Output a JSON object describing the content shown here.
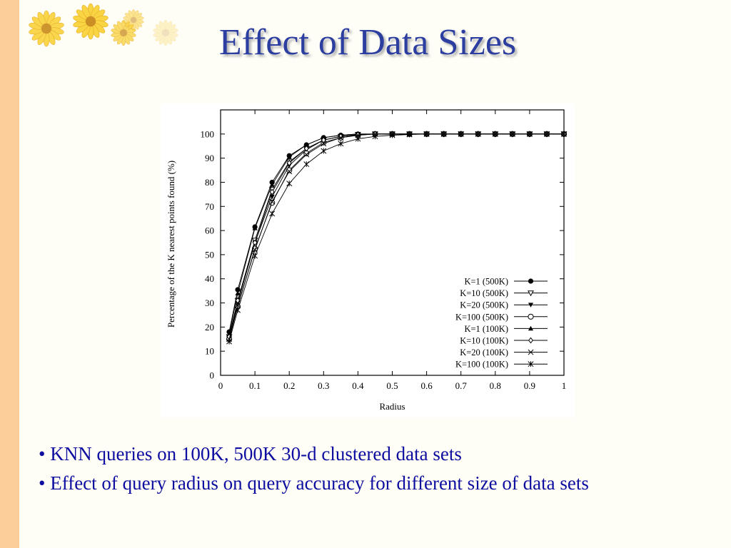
{
  "slide": {
    "title": "Effect of Data Sizes",
    "bullets": [
      "• KNN queries on 100K, 500K 30-d clustered data sets",
      "• Effect of query radius on query accuracy for different size of data sets"
    ],
    "colors": {
      "title": "#2c3ea0",
      "bullets": "#0d0da0",
      "left_bar": "#fccf9a"
    },
    "decoration": "sunflower-flowers-icon"
  },
  "chart_data": {
    "type": "line",
    "title": "",
    "xlabel": "Radius",
    "ylabel": "Percentage of the K nearest points found (%)",
    "xlim": [
      0,
      1
    ],
    "ylim": [
      0,
      110
    ],
    "xticks": [
      0,
      0.1,
      0.2,
      0.3,
      0.4,
      0.5,
      0.6,
      0.7,
      0.8,
      0.9,
      1
    ],
    "xtick_labels": [
      "0",
      "0.1",
      "0.2",
      "0.3",
      "0.4",
      "0.5",
      "0.6",
      "0.7",
      "0.8",
      "0.9",
      "1"
    ],
    "yticks": [
      0,
      10,
      20,
      30,
      40,
      50,
      60,
      70,
      80,
      90,
      100
    ],
    "ytick_labels": [
      "0",
      "10",
      "20",
      "30",
      "40",
      "50",
      "60",
      "70",
      "80",
      "90",
      "100"
    ],
    "grid": false,
    "legend_position": "lower-right",
    "x": [
      0.025,
      0.05,
      0.1,
      0.15,
      0.2,
      0.25,
      0.3,
      0.35,
      0.4,
      0.45,
      0.5,
      0.55,
      0.6,
      0.65,
      0.7,
      0.75,
      0.8,
      0.85,
      0.9,
      0.95,
      1.0
    ],
    "series": [
      {
        "name": "K=1 (500K)",
        "marker": "filled-circle",
        "values": [
          18,
          35.5,
          61.5,
          80,
          91,
          95.5,
          98.5,
          99.5,
          100,
          100,
          100,
          100,
          100,
          100,
          100,
          100,
          100,
          100,
          100,
          100,
          100
        ]
      },
      {
        "name": "K=10 (500K)",
        "marker": "open-triangle-down",
        "values": [
          16,
          31,
          56,
          77,
          88.5,
          94,
          97.5,
          99,
          99.8,
          100,
          100,
          100,
          100,
          100,
          100,
          100,
          100,
          100,
          100,
          100,
          100
        ]
      },
      {
        "name": "K=20 (500K)",
        "marker": "filled-triangle-down",
        "values": [
          15.5,
          30,
          55,
          74,
          87,
          93.5,
          97.5,
          99,
          99.7,
          100,
          100,
          100,
          100,
          100,
          100,
          100,
          100,
          100,
          100,
          100,
          100
        ]
      },
      {
        "name": "K=100 (500K)",
        "marker": "open-circle",
        "values": [
          15,
          28.5,
          52.5,
          71.5,
          85,
          92,
          96.5,
          98.5,
          99.5,
          100,
          100,
          100,
          100,
          100,
          100,
          100,
          100,
          100,
          100,
          100,
          100
        ]
      },
      {
        "name": "K=1 (100K)",
        "marker": "filled-triangle-up",
        "values": [
          17,
          34,
          61,
          79,
          90.5,
          95.5,
          98.5,
          99.5,
          100,
          100,
          100,
          100,
          100,
          100,
          100,
          100,
          100,
          100,
          100,
          100,
          100
        ]
      },
      {
        "name": "K=10 (100K)",
        "marker": "open-diamond",
        "values": [
          16,
          31,
          55,
          76,
          88,
          94,
          97.5,
          99,
          99.7,
          100,
          100,
          100,
          100,
          100,
          100,
          100,
          100,
          100,
          100,
          100,
          100
        ]
      },
      {
        "name": "K=20 (100K)",
        "marker": "x",
        "values": [
          15,
          29,
          52,
          72,
          84.5,
          91.5,
          96,
          98.5,
          99.5,
          100,
          100,
          100,
          100,
          100,
          100,
          100,
          100,
          100,
          100,
          100,
          100
        ]
      },
      {
        "name": "K=100 (100K)",
        "marker": "asterisk",
        "values": [
          14,
          27,
          49.5,
          67,
          79.5,
          87.5,
          93,
          96,
          98,
          99,
          99.5,
          99.8,
          100,
          100,
          100,
          100,
          100,
          100,
          100,
          100,
          100
        ]
      }
    ]
  }
}
